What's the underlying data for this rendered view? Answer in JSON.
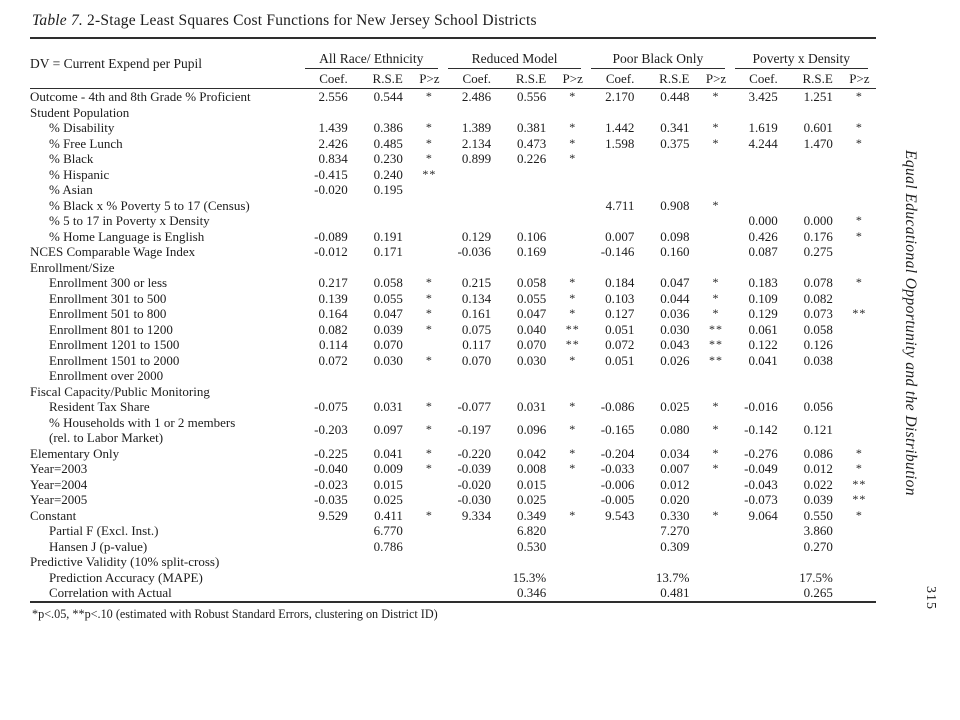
{
  "page": {
    "title_prefix": "Table 7.",
    "title_rest": " 2-Stage Least Squares Cost Functions for New Jersey School Districts",
    "footnote": "*p<.05, **p<.10 (estimated with Robust Standard Errors, clustering on District ID)",
    "sidebar_text": "Equal Educational Opportunity and the Distribution",
    "page_number": "315"
  },
  "table": {
    "dv_label": "DV = Current Expend per Pupil",
    "groups": [
      "All Race/ Ethnicity",
      "Reduced Model",
      "Poor Black Only",
      "Poverty x Density"
    ],
    "subheaders": [
      "Coef.",
      "R.S.E",
      "P>z"
    ],
    "rows": [
      {
        "label": "Outcome - 4th and 8th Grade % Proficient",
        "indent": 0,
        "cells": [
          "2.556",
          "0.544",
          "*",
          "2.486",
          "0.556",
          "*",
          "2.170",
          "0.448",
          "*",
          "3.425",
          "1.251",
          "*"
        ]
      },
      {
        "label": "Student Population",
        "indent": 0,
        "cells": [
          "",
          "",
          "",
          "",
          "",
          "",
          "",
          "",
          "",
          "",
          "",
          ""
        ]
      },
      {
        "label": "% Disability",
        "indent": 1,
        "cells": [
          "1.439",
          "0.386",
          "*",
          "1.389",
          "0.381",
          "*",
          "1.442",
          "0.341",
          "*",
          "1.619",
          "0.601",
          "*"
        ]
      },
      {
        "label": "% Free Lunch",
        "indent": 1,
        "cells": [
          "2.426",
          "0.485",
          "*",
          "2.134",
          "0.473",
          "*",
          "1.598",
          "0.375",
          "*",
          "4.244",
          "1.470",
          "*"
        ]
      },
      {
        "label": "% Black",
        "indent": 1,
        "cells": [
          "0.834",
          "0.230",
          "*",
          "0.899",
          "0.226",
          "*",
          "",
          "",
          "",
          "",
          "",
          ""
        ]
      },
      {
        "label": "% Hispanic",
        "indent": 1,
        "cells": [
          "-0.415",
          "0.240",
          "**",
          "",
          "",
          "",
          "",
          "",
          "",
          "",
          "",
          ""
        ]
      },
      {
        "label": "% Asian",
        "indent": 1,
        "cells": [
          "-0.020",
          "0.195",
          "",
          "",
          "",
          "",
          "",
          "",
          "",
          "",
          "",
          ""
        ]
      },
      {
        "label": "% Black x % Poverty 5 to 17 (Census)",
        "indent": 1,
        "cells": [
          "",
          "",
          "",
          "",
          "",
          "",
          "4.711",
          "0.908",
          "*",
          "",
          "",
          ""
        ]
      },
      {
        "label": "% 5 to 17 in Poverty x Density",
        "indent": 1,
        "cells": [
          "",
          "",
          "",
          "",
          "",
          "",
          "",
          "",
          "",
          "0.000",
          "0.000",
          "*"
        ]
      },
      {
        "label": "% Home Language is English",
        "indent": 1,
        "cells": [
          "-0.089",
          "0.191",
          "",
          "0.129",
          "0.106",
          "",
          "0.007",
          "0.098",
          "",
          "0.426",
          "0.176",
          "*"
        ]
      },
      {
        "label": "NCES Comparable Wage Index",
        "indent": 0,
        "cells": [
          "-0.012",
          "0.171",
          "",
          "-0.036",
          "0.169",
          "",
          "-0.146",
          "0.160",
          "",
          "0.087",
          "0.275",
          ""
        ]
      },
      {
        "label": "Enrollment/Size",
        "indent": 0,
        "cells": [
          "",
          "",
          "",
          "",
          "",
          "",
          "",
          "",
          "",
          "",
          "",
          ""
        ]
      },
      {
        "label": "Enrollment 300 or less",
        "indent": 1,
        "cells": [
          "0.217",
          "0.058",
          "*",
          "0.215",
          "0.058",
          "*",
          "0.184",
          "0.047",
          "*",
          "0.183",
          "0.078",
          "*"
        ]
      },
      {
        "label": "Enrollment 301 to 500",
        "indent": 1,
        "cells": [
          "0.139",
          "0.055",
          "*",
          "0.134",
          "0.055",
          "*",
          "0.103",
          "0.044",
          "*",
          "0.109",
          "0.082",
          ""
        ]
      },
      {
        "label": "Enrollment 501 to 800",
        "indent": 1,
        "cells": [
          "0.164",
          "0.047",
          "*",
          "0.161",
          "0.047",
          "*",
          "0.127",
          "0.036",
          "*",
          "0.129",
          "0.073",
          "**"
        ]
      },
      {
        "label": "Enrollment 801 to 1200",
        "indent": 1,
        "cells": [
          "0.082",
          "0.039",
          "*",
          "0.075",
          "0.040",
          "**",
          "0.051",
          "0.030",
          "**",
          "0.061",
          "0.058",
          ""
        ]
      },
      {
        "label": "Enrollment 1201 to 1500",
        "indent": 1,
        "cells": [
          "0.114",
          "0.070",
          "",
          "0.117",
          "0.070",
          "**",
          "0.072",
          "0.043",
          "**",
          "0.122",
          "0.126",
          ""
        ]
      },
      {
        "label": "Enrollment 1501 to 2000",
        "indent": 1,
        "cells": [
          "0.072",
          "0.030",
          "*",
          "0.070",
          "0.030",
          "*",
          "0.051",
          "0.026",
          "**",
          "0.041",
          "0.038",
          ""
        ]
      },
      {
        "label": "Enrollment over 2000",
        "indent": 1,
        "cells": [
          "",
          "",
          "",
          "",
          "",
          "",
          "",
          "",
          "",
          "",
          "",
          ""
        ]
      },
      {
        "label": "Fiscal Capacity/Public Monitoring",
        "indent": 0,
        "cells": [
          "",
          "",
          "",
          "",
          "",
          "",
          "",
          "",
          "",
          "",
          "",
          ""
        ]
      },
      {
        "label": "Resident Tax Share",
        "indent": 1,
        "cells": [
          "-0.075",
          "0.031",
          "*",
          "-0.077",
          "0.031",
          "*",
          "-0.086",
          "0.025",
          "*",
          "-0.016",
          "0.056",
          ""
        ]
      },
      {
        "label": "% Households with 1 or 2 members",
        "label2": "(rel. to Labor Market)",
        "indent": 1,
        "cells": [
          "-0.203",
          "0.097",
          "*",
          "-0.197",
          "0.096",
          "*",
          "-0.165",
          "0.080",
          "*",
          "-0.142",
          "0.121",
          ""
        ]
      },
      {
        "label": "Elementary Only",
        "indent": 0,
        "cells": [
          "-0.225",
          "0.041",
          "*",
          "-0.220",
          "0.042",
          "*",
          "-0.204",
          "0.034",
          "*",
          "-0.276",
          "0.086",
          "*"
        ]
      },
      {
        "label": "Year=2003",
        "indent": 0,
        "cells": [
          "-0.040",
          "0.009",
          "*",
          "-0.039",
          "0.008",
          "*",
          "-0.033",
          "0.007",
          "*",
          "-0.049",
          "0.012",
          "*"
        ]
      },
      {
        "label": "Year=2004",
        "indent": 0,
        "cells": [
          "-0.023",
          "0.015",
          "",
          "-0.020",
          "0.015",
          "",
          "-0.006",
          "0.012",
          "",
          "-0.043",
          "0.022",
          "**"
        ]
      },
      {
        "label": "Year=2005",
        "indent": 0,
        "cells": [
          "-0.035",
          "0.025",
          "",
          "-0.030",
          "0.025",
          "",
          "-0.005",
          "0.020",
          "",
          "-0.073",
          "0.039",
          "**"
        ]
      },
      {
        "label": "Constant",
        "indent": 0,
        "cells": [
          "9.529",
          "0.411",
          "*",
          "9.334",
          "0.349",
          "*",
          "9.543",
          "0.330",
          "*",
          "9.064",
          "0.550",
          "*"
        ]
      },
      {
        "label": "Partial F (Excl. Inst.)",
        "indent": 1,
        "cells": [
          "",
          "6.770",
          "",
          "",
          "6.820",
          "",
          "",
          "7.270",
          "",
          "",
          "3.860",
          ""
        ]
      },
      {
        "label": "Hansen J (p-value)",
        "indent": 1,
        "cells": [
          "",
          "0.786",
          "",
          "",
          "0.530",
          "",
          "",
          "0.309",
          "",
          "",
          "0.270",
          ""
        ]
      },
      {
        "label": "Predictive Validity (10% split-cross)",
        "indent": 0,
        "cells": [
          "",
          "",
          "",
          "",
          "",
          "",
          "",
          "",
          "",
          "",
          "",
          ""
        ]
      },
      {
        "label": "Prediction Accuracy (MAPE)",
        "indent": 1,
        "cells": [
          "",
          "",
          "",
          "",
          "15.3%",
          "",
          "",
          "13.7%",
          "",
          "",
          "17.5%",
          ""
        ]
      },
      {
        "label": "Correlation with Actual",
        "indent": 1,
        "cells": [
          "",
          "",
          "",
          "",
          "0.346",
          "",
          "",
          "0.481",
          "",
          "",
          "0.265",
          ""
        ]
      }
    ]
  }
}
